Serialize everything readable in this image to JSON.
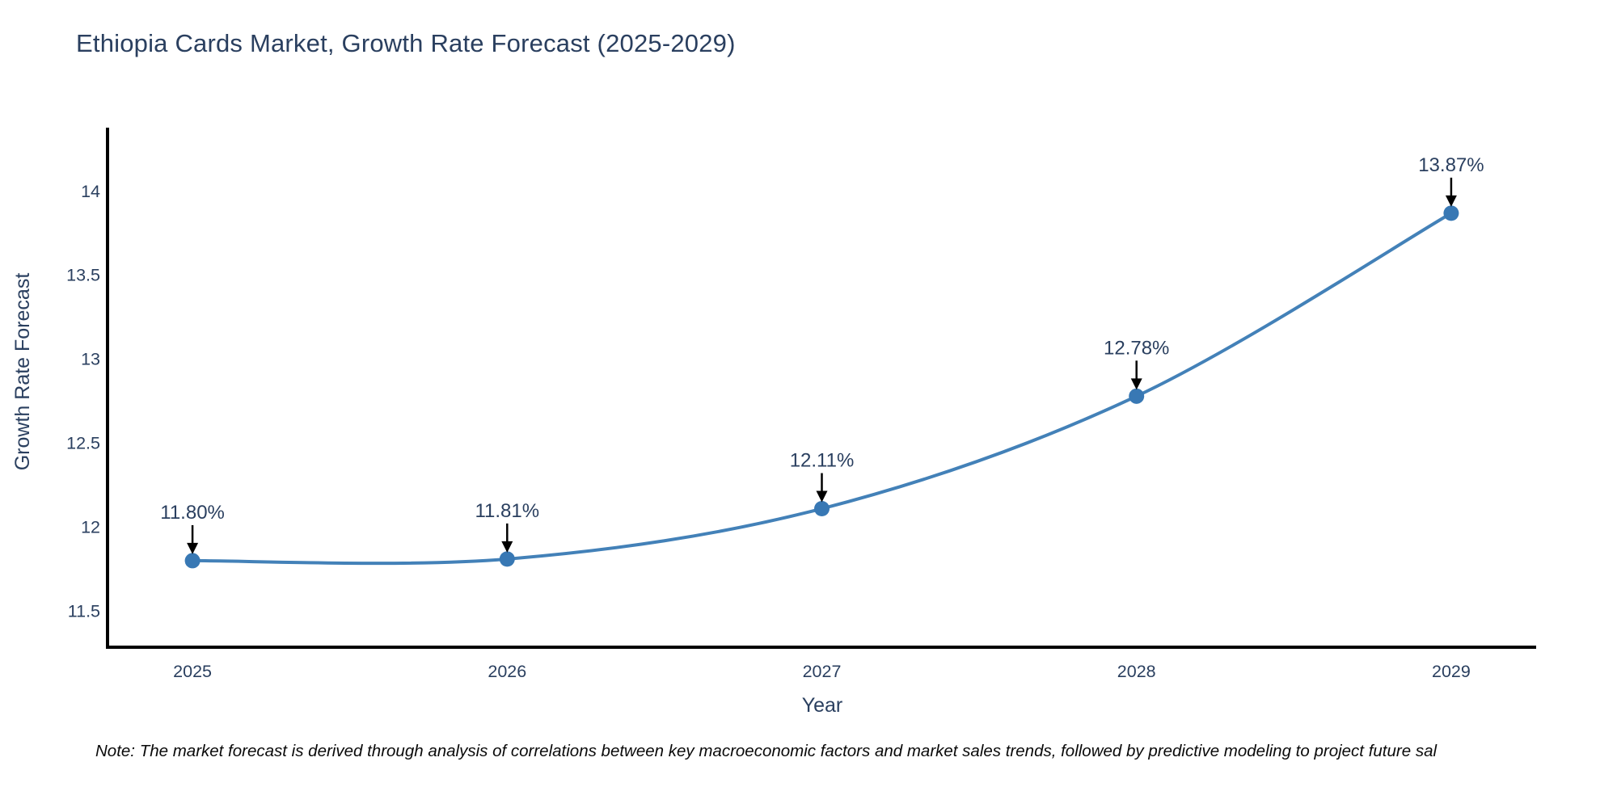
{
  "title": "Ethiopia Cards Market, Growth Rate Forecast (2025-2029)",
  "footnote": "Note: The market forecast is derived through analysis of correlations between key macroeconomic factors and market sales trends, followed by predictive modeling to project future sal",
  "colors": {
    "title_text": "#2a3f5f",
    "axis_text": "#2a3f5f",
    "annotation_text": "#2a3f5f",
    "footnote_text": "#0a0a0a",
    "axis_line": "#000000",
    "series_line": "#4381b8",
    "marker_fill": "#3878b4",
    "annotation_arrow": "#000000",
    "background": "#ffffff"
  },
  "chart_data": {
    "type": "line",
    "title": "Ethiopia Cards Market, Growth Rate Forecast (2025-2029)",
    "xlabel": "Year",
    "ylabel": "Growth Rate Forecast",
    "x": [
      2025,
      2026,
      2027,
      2028,
      2029
    ],
    "y": [
      11.8,
      11.81,
      12.11,
      12.78,
      13.87
    ],
    "point_labels": [
      "11.80%",
      "11.81%",
      "12.11%",
      "12.78%",
      "13.87%"
    ],
    "x_tick_labels": [
      "2025",
      "2026",
      "2027",
      "2028",
      "2029"
    ],
    "y_tick_labels": [
      "11.5",
      "12",
      "12.5",
      "13",
      "13.5",
      "14"
    ],
    "xlim": [
      2024.73,
      2029.27
    ],
    "ylim": [
      11.275,
      14.37
    ],
    "grid": false,
    "legend_position": "none",
    "line_shape": "spline",
    "markers": true
  }
}
